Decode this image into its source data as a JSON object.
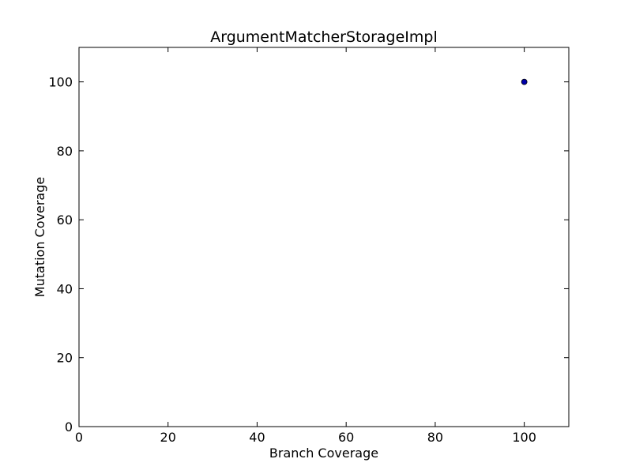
{
  "chart_data": {
    "type": "scatter",
    "title": "ArgumentMatcherStorageImpl",
    "xlabel": "Branch Coverage",
    "ylabel": "Mutation Coverage",
    "xlim": [
      0,
      110
    ],
    "ylim": [
      0,
      110
    ],
    "xticks": [
      0,
      20,
      40,
      60,
      80,
      100
    ],
    "yticks": [
      0,
      20,
      40,
      60,
      80,
      100
    ],
    "grid": false,
    "series": [
      {
        "points": [
          {
            "x": 100,
            "y": 100
          }
        ],
        "color": "#0000aa",
        "edge_color": "#000000"
      }
    ]
  }
}
